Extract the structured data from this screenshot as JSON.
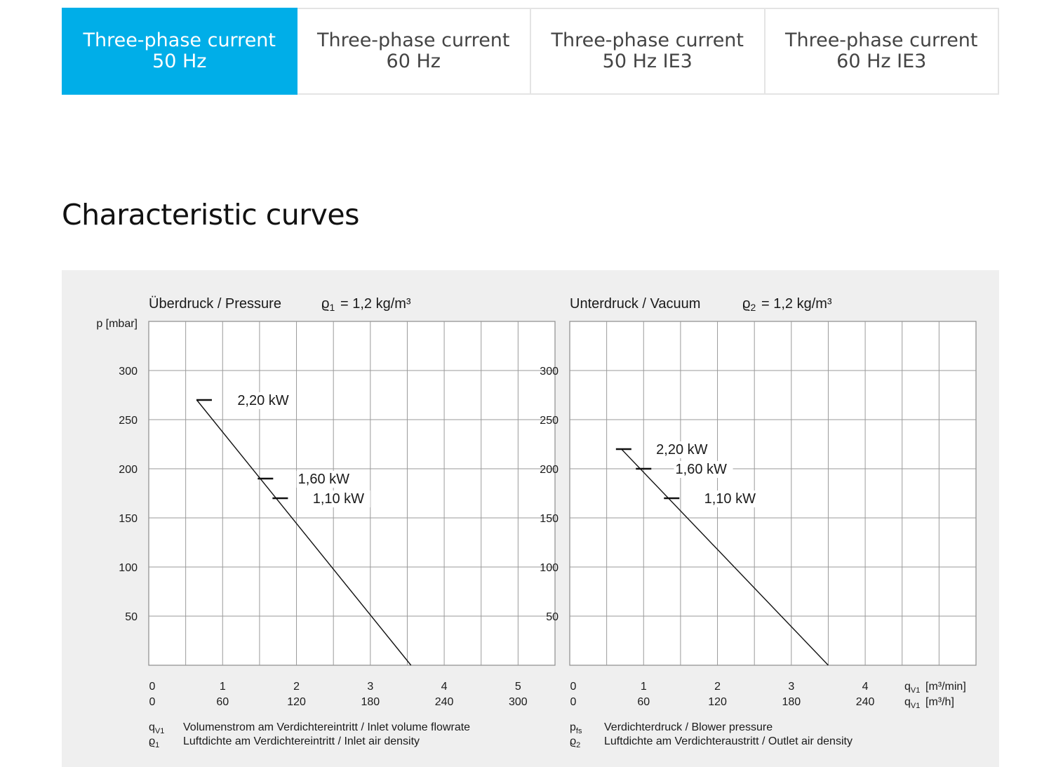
{
  "tabs": [
    {
      "line1": "Three-phase current",
      "line2": "50 Hz",
      "active": true
    },
    {
      "line1": "Three-phase current",
      "line2": "60 Hz",
      "active": false
    },
    {
      "line1": "Three-phase current",
      "line2": "50 Hz IE3",
      "active": false
    },
    {
      "line1": "Three-phase current",
      "line2": "60 Hz IE3",
      "active": false
    }
  ],
  "section_title": "Characteristic curves",
  "chart_data": [
    {
      "type": "line",
      "title": "Überdruck / Pressure",
      "density_symbol": "ϱ",
      "density_sub": "1",
      "density_value": "= 1,2 kg/m³",
      "ylabel": "p [mbar]",
      "yticks": [
        50,
        100,
        150,
        200,
        250,
        300
      ],
      "ylim": [
        0,
        350
      ],
      "xlim": [
        0,
        5.5
      ],
      "xticks_min": [
        "0",
        "1",
        "2",
        "3",
        "4",
        "5"
      ],
      "xticks_h": [
        "0",
        "60",
        "120",
        "180",
        "240",
        "300"
      ],
      "grid": true,
      "series": [
        {
          "x": [
            0.65,
            3.55
          ],
          "y": [
            270,
            0
          ]
        }
      ],
      "markers": [
        {
          "label": "2,20 kW",
          "x": 0.75,
          "y": 270,
          "label_x": 1.2,
          "label_y": 265
        },
        {
          "label": "1,60 kW",
          "x": 1.58,
          "y": 190,
          "label_x": 2.02,
          "label_y": 185
        },
        {
          "label": "1,10 kW",
          "x": 1.78,
          "y": 170,
          "label_x": 2.22,
          "label_y": 165
        }
      ],
      "legend": [
        {
          "sym": "q",
          "sub": "V1",
          "text": "Volumenstrom am Verdichtereintritt / Inlet volume flowrate"
        },
        {
          "sym": "ϱ",
          "sub": "1",
          "text": "Luftdichte am Verdichtereintritt / Inlet air density"
        }
      ]
    },
    {
      "type": "line",
      "title": "Unterdruck / Vacuum",
      "density_symbol": "ϱ",
      "density_sub": "2",
      "density_value": "= 1,2 kg/m³",
      "yticks": [
        50,
        100,
        150,
        200,
        250,
        300
      ],
      "ylim": [
        0,
        350
      ],
      "xlim": [
        0,
        5.5
      ],
      "xticks_min": [
        "0",
        "1",
        "2",
        "3",
        "4"
      ],
      "xticks_h": [
        "0",
        "60",
        "120",
        "180",
        "240"
      ],
      "unit_min": "[m³/min]",
      "unit_h": "[m³/h]",
      "grid": true,
      "series": [
        {
          "x": [
            0.7,
            3.5
          ],
          "y": [
            220,
            0
          ]
        }
      ],
      "markers": [
        {
          "label": "2,20 kW",
          "x": 0.73,
          "y": 220,
          "label_x": 1.17,
          "label_y": 215
        },
        {
          "label": "1,60 kW",
          "x": 1.0,
          "y": 200,
          "label_x": 1.43,
          "label_y": 195
        },
        {
          "label": "1,10 kW",
          "x": 1.38,
          "y": 170,
          "label_x": 1.82,
          "label_y": 165
        }
      ],
      "legend": [
        {
          "sym": "p",
          "sub": "fs",
          "text": "Verdichterdruck / Blower pressure"
        },
        {
          "sym": "ϱ",
          "sub": "2",
          "text": "Luftdichte am Verdichteraustritt / Outlet air density"
        }
      ]
    }
  ]
}
